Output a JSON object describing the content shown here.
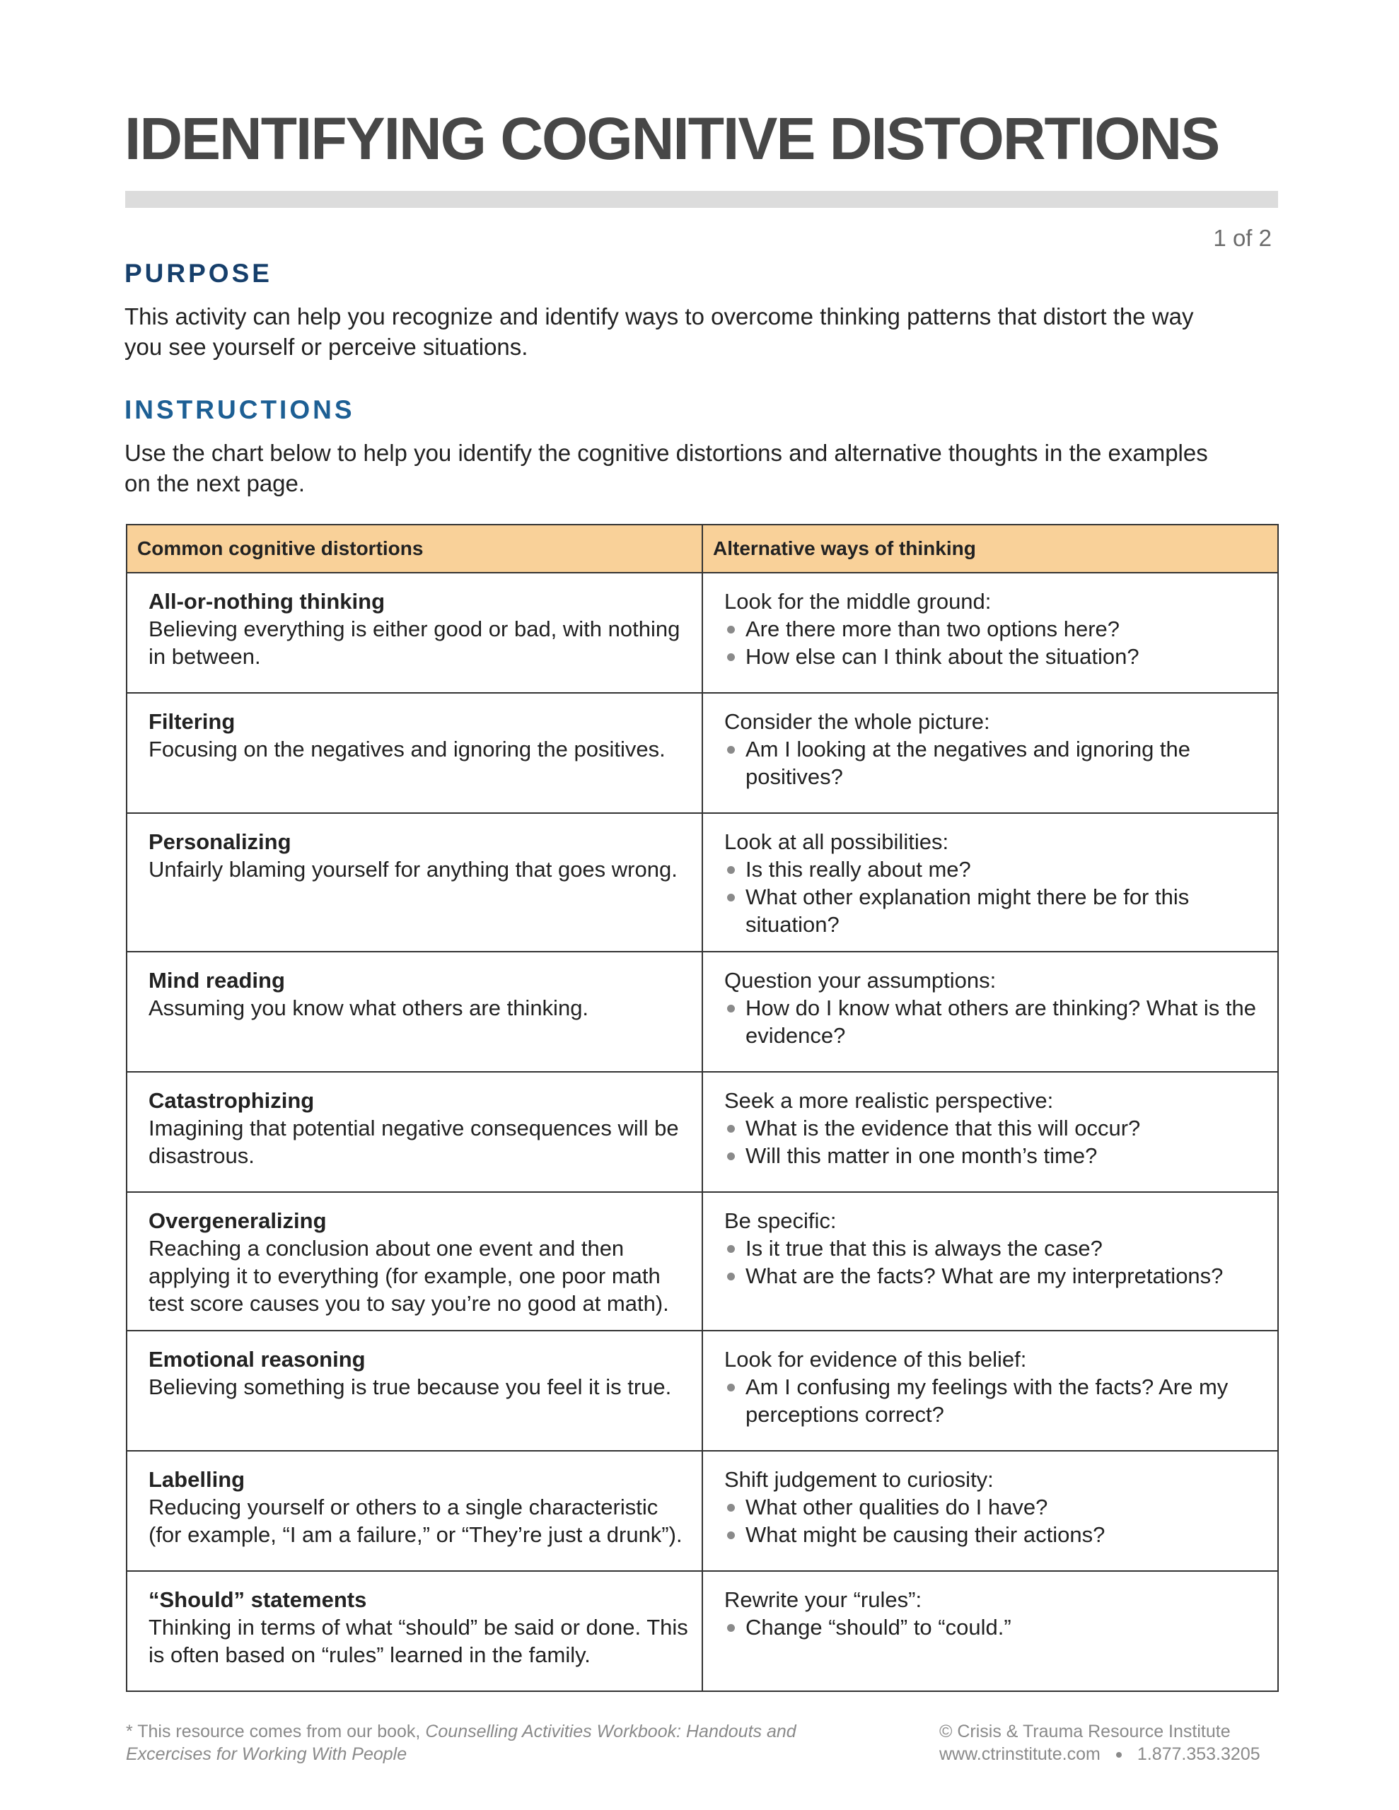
{
  "header": {
    "title": "IDENTIFYING COGNITIVE DISTORTIONS",
    "page_indicator": "1 of 2"
  },
  "purpose": {
    "heading": "PURPOSE",
    "text": "This activity can help you recognize and identify ways to overcome thinking patterns that distort the way you see yourself or perceive situations."
  },
  "instructions": {
    "heading": "INSTRUCTIONS",
    "text": "Use the chart below to help you identify the cognitive distortions and alternative thoughts in the examples on the next page."
  },
  "table": {
    "headers": [
      "Common cognitive distortions",
      "Alternative ways of thinking"
    ],
    "header_color": "#f9d199",
    "rows": [
      {
        "name": "All-or-nothing thinking",
        "desc": "Believing everything is either good or bad, with nothing in between.",
        "alt": "Look for the middle ground:",
        "bullets": [
          "Are there more than two options here?",
          "How else can I think about the situation?"
        ]
      },
      {
        "name": "Filtering",
        "desc": "Focusing on the negatives and ignoring the positives.",
        "alt": "Consider the whole picture:",
        "bullets": [
          "Am I looking at the negatives and ignoring the positives?"
        ]
      },
      {
        "name": "Personalizing",
        "desc": "Unfairly blaming yourself for anything that goes wrong.",
        "alt": "Look at all possibilities:",
        "bullets": [
          "Is this really about me?",
          "What other explanation might there be for this situation?"
        ]
      },
      {
        "name": "Mind reading",
        "desc": "Assuming you know what others are thinking.",
        "alt": "Question your assumptions:",
        "bullets": [
          "How do I know what others are thinking? What is the evidence?"
        ]
      },
      {
        "name": "Catastrophizing",
        "desc": "Imagining that potential negative consequences will be disastrous.",
        "alt": "Seek a more realistic perspective:",
        "bullets": [
          "What is the evidence that this will occur?",
          "Will this matter in one month’s time?"
        ]
      },
      {
        "name": "Overgeneralizing",
        "desc": "Reaching a conclusion about one event and then applying it to everything (for example, one poor math test score causes you to say you’re no good at math).",
        "alt": "Be specific:",
        "bullets": [
          "Is it true that this is always the case?",
          "What are the facts? What are my interpretations?"
        ]
      },
      {
        "name": "Emotional reasoning",
        "desc": "Believing something is true because you feel it is true.",
        "alt": "Look for evidence of this belief:",
        "bullets": [
          "Am I confusing my feelings with the facts? Are my perceptions correct?"
        ]
      },
      {
        "name": "Labelling",
        "desc": "Reducing yourself or others to a single characteristic (for example, “I am a failure,” or “They’re just a drunk”).",
        "alt": "Shift judgement to curiosity:",
        "bullets": [
          "What other qualities do I have?",
          "What might be causing their actions?"
        ]
      },
      {
        "name": "“Should” statements",
        "desc": "Thinking in terms of what “should” be said or done. This is often based on “rules” learned in the family.",
        "alt": "Rewrite your “rules”:",
        "bullets": [
          "Change “should” to “could.”"
        ]
      }
    ]
  },
  "footer": {
    "source_prefix": "* This resource comes from our book, ",
    "book_title": "Counselling Activities Workbook: Handouts and Excercises for Working With People",
    "copyright": "© Crisis & Trauma Resource Institute",
    "website": "www.ctrinstitute.com",
    "phone": "1.877.353.3205"
  }
}
